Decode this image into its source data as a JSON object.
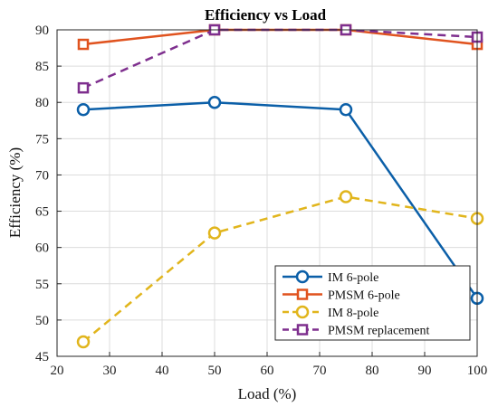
{
  "chart_data": {
    "type": "line",
    "title": "Efficiency vs Load",
    "xlabel": "Load (%)",
    "ylabel": "Efficiency (%)",
    "xlim": [
      20,
      100
    ],
    "ylim": [
      45,
      90
    ],
    "xticks": [
      20,
      30,
      40,
      50,
      60,
      70,
      80,
      90,
      100
    ],
    "yticks": [
      45,
      50,
      55,
      60,
      65,
      70,
      75,
      80,
      85,
      90
    ],
    "grid": true,
    "legend_position": "bottom-right",
    "series": [
      {
        "name": "IM 6-pole",
        "x": [
          25,
          50,
          75,
          100
        ],
        "y": [
          79,
          80,
          79,
          53
        ],
        "color": "#0b5fa8",
        "dash": "solid",
        "marker": "circle"
      },
      {
        "name": "PMSM 6-pole",
        "x": [
          25,
          50,
          75,
          100
        ],
        "y": [
          88,
          90,
          90,
          88
        ],
        "color": "#e0531f",
        "dash": "solid",
        "marker": "square"
      },
      {
        "name": "IM 8-pole",
        "x": [
          25,
          50,
          75,
          100
        ],
        "y": [
          47,
          62,
          67,
          64
        ],
        "color": "#e1b51c",
        "dash": "dashed",
        "marker": "circle"
      },
      {
        "name": "PMSM replacement",
        "x": [
          25,
          50,
          75,
          100
        ],
        "y": [
          82,
          90,
          90,
          89
        ],
        "color": "#7e2f8e",
        "dash": "dashed",
        "marker": "square"
      }
    ]
  }
}
